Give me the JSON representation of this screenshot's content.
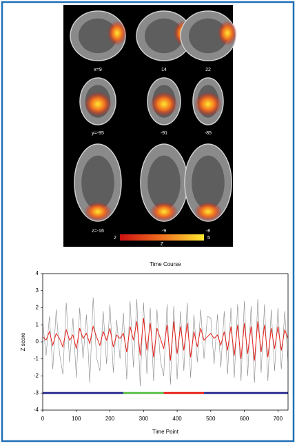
{
  "figure": {
    "panel_labels": {
      "sagittal": [
        "x=9",
        "14",
        "22"
      ],
      "coronal": [
        "y=-95",
        "-91",
        "-85"
      ],
      "axial": [
        "z=-16",
        "-9",
        "-8"
      ]
    },
    "colorbar": {
      "lim": [
        2,
        5
      ],
      "label": "Z",
      "colors": [
        "#cc1010",
        "#f07020",
        "#ffe830"
      ]
    }
  },
  "chart_data": {
    "type": "line",
    "title": "Time Course",
    "x_label": "Time Point",
    "y_label": "Z score",
    "xlim": [
      0,
      730
    ],
    "xticks": [
      0,
      100,
      200,
      300,
      400,
      500,
      600,
      700
    ],
    "ylim": [
      -4,
      4
    ],
    "yticks": [
      -4,
      -3,
      -2,
      -1,
      0,
      1,
      2,
      3,
      4
    ],
    "x": [
      0,
      10,
      20,
      30,
      40,
      50,
      60,
      70,
      80,
      90,
      100,
      110,
      120,
      130,
      140,
      150,
      160,
      170,
      180,
      190,
      200,
      210,
      220,
      230,
      240,
      250,
      260,
      270,
      280,
      290,
      300,
      310,
      320,
      330,
      340,
      350,
      360,
      370,
      380,
      390,
      400,
      410,
      420,
      430,
      440,
      450,
      460,
      470,
      480,
      490,
      500,
      510,
      520,
      530,
      540,
      550,
      560,
      570,
      580,
      590,
      600,
      610,
      620,
      630,
      640,
      650,
      660,
      670,
      680,
      690,
      700,
      710,
      720,
      730
    ],
    "series": [
      {
        "color": "#888888",
        "values": [
          1.2,
          -0.8,
          1.5,
          -1.6,
          1.9,
          -0.7,
          -1.9,
          2.3,
          -1.2,
          1.4,
          -2.1,
          2.0,
          -1.0,
          1.6,
          -2.4,
          2.6,
          -0.9,
          -1.7,
          1.8,
          -1.3,
          2.2,
          -1.8,
          1.3,
          -1.0,
          1.7,
          -2.2,
          2.4,
          -1.5,
          2.5,
          -2.6,
          2.3,
          -1.9,
          2.0,
          -2.3,
          1.9,
          -1.1,
          -2.0,
          2.2,
          -2.5,
          2.1,
          -2.2,
          1.8,
          -1.7,
          2.3,
          -2.1,
          1.6,
          -1.2,
          1.9,
          -1.0,
          1.5,
          1.4,
          -1.3,
          1.6,
          -1.5,
          1.8,
          -1.9,
          2.0,
          -2.1,
          2.2,
          -2.3,
          2.4,
          -2.0,
          2.1,
          -2.4,
          2.5,
          -1.8,
          2.2,
          -2.3,
          1.9,
          -1.7,
          2.0,
          -1.6,
          1.8,
          -1.2
        ]
      },
      {
        "color": "#e8231c",
        "values": [
          0.3,
          0.1,
          0.6,
          -0.2,
          0.5,
          0.2,
          -0.3,
          0.7,
          0.1,
          0.4,
          -0.4,
          0.8,
          0.2,
          0.5,
          -0.1,
          0.9,
          0.3,
          -0.2,
          0.6,
          0.1,
          0.8,
          -0.3,
          0.4,
          0.2,
          0.5,
          -0.6,
          0.9,
          0.1,
          1.2,
          -0.8,
          1.4,
          -0.5,
          1.1,
          -0.9,
          0.8,
          0.2,
          -0.4,
          1.0,
          -1.1,
          1.2,
          -0.7,
          0.9,
          -0.5,
          1.1,
          -0.9,
          0.6,
          -0.3,
          0.8,
          0.1,
          0.3,
          0.5,
          0.2,
          0.4,
          -0.2,
          0.6,
          -0.5,
          0.9,
          -0.8,
          1.0,
          -1.0,
          1.1,
          -0.7,
          0.9,
          -1.1,
          1.2,
          -0.6,
          1.0,
          -0.9,
          0.8,
          -0.4,
          0.9,
          -0.5,
          0.7,
          0.2
        ]
      }
    ],
    "condition_blocks": {
      "level": -3,
      "segments": [
        {
          "start": 0,
          "end": 240,
          "color": "#2e3192"
        },
        {
          "start": 240,
          "end": 360,
          "color": "#5cc04a"
        },
        {
          "start": 360,
          "end": 480,
          "color": "#e8231c"
        },
        {
          "start": 480,
          "end": 730,
          "color": "#2e3192"
        }
      ]
    }
  }
}
